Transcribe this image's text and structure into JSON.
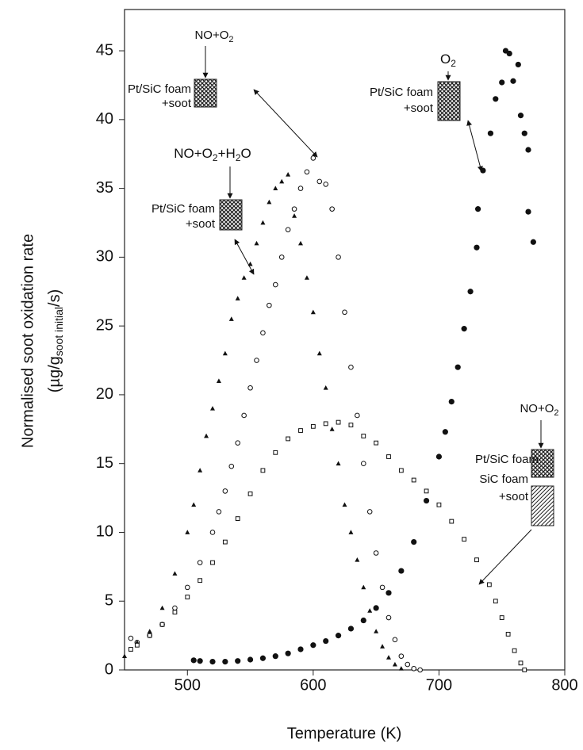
{
  "chart_data": {
    "type": "scatter",
    "x_label": "Temperature (K)",
    "y_label": "Normalised soot oxidation rate",
    "y_label_line2": {
      "before": "(µg/g",
      "sub": "soot initial",
      "after": "/s)"
    },
    "xlim": [
      450,
      800
    ],
    "xticks": [
      500,
      600,
      700,
      800
    ],
    "ylim": [
      0,
      48
    ],
    "yticks": [
      0,
      5,
      10,
      15,
      20,
      25,
      30,
      35,
      40,
      45
    ],
    "grid": false,
    "series": [
      {
        "marker": "filled-circle",
        "color": "#111111",
        "x": [
          505,
          510,
          520,
          530,
          540,
          550,
          560,
          570,
          580,
          590,
          600,
          610,
          620,
          630,
          640,
          650,
          660,
          670,
          680,
          690,
          700,
          705,
          710,
          715,
          720,
          725,
          730,
          731,
          735,
          741,
          745,
          750,
          753,
          756,
          759,
          763,
          765,
          768,
          771,
          771,
          775
        ],
        "values": [
          0.7,
          0.65,
          0.6,
          0.6,
          0.65,
          0.75,
          0.85,
          1.0,
          1.2,
          1.5,
          1.8,
          2.1,
          2.5,
          3.0,
          3.6,
          4.5,
          5.6,
          7.2,
          9.3,
          12.3,
          15.5,
          17.3,
          19.5,
          22.0,
          24.8,
          27.5,
          30.7,
          33.5,
          36.3,
          39.0,
          41.5,
          42.7,
          45.0,
          44.8,
          42.8,
          44.0,
          40.3,
          39.0,
          37.8,
          33.3,
          31.1
        ]
      },
      {
        "marker": "open-circle",
        "color": "#111111",
        "x": [
          455,
          460,
          470,
          480,
          490,
          500,
          510,
          520,
          525,
          530,
          535,
          540,
          545,
          550,
          555,
          560,
          565,
          570,
          575,
          580,
          585,
          590,
          595,
          600,
          605,
          610,
          615,
          620,
          625,
          630,
          635,
          640,
          645,
          650,
          655,
          660,
          665,
          670,
          675,
          680,
          685
        ],
        "values": [
          2.3,
          2.0,
          2.5,
          3.3,
          4.5,
          6.0,
          7.8,
          10.0,
          11.5,
          13.0,
          14.8,
          16.5,
          18.5,
          20.5,
          22.5,
          24.5,
          26.5,
          28.0,
          30.0,
          32.0,
          33.5,
          35.0,
          36.2,
          37.2,
          35.5,
          35.3,
          33.5,
          30.0,
          26.0,
          22.0,
          18.5,
          15.0,
          11.5,
          8.5,
          6.0,
          3.8,
          2.2,
          1.0,
          0.4,
          0.1,
          0.0
        ]
      },
      {
        "marker": "triangle",
        "color": "#111111",
        "x": [
          450,
          455,
          460,
          470,
          480,
          490,
          500,
          505,
          510,
          515,
          520,
          525,
          530,
          535,
          540,
          545,
          550,
          555,
          560,
          565,
          570,
          575,
          580,
          585,
          590,
          595,
          600,
          605,
          610,
          615,
          620,
          625,
          630,
          635,
          640,
          645,
          650,
          655,
          660,
          665,
          670
        ],
        "values": [
          1.0,
          1.5,
          2.0,
          2.8,
          4.5,
          7.0,
          10.0,
          12.0,
          14.5,
          17.0,
          19.0,
          21.0,
          23.0,
          25.5,
          27.0,
          28.5,
          29.5,
          31.0,
          32.5,
          34.0,
          35.0,
          35.5,
          36.0,
          33.0,
          31.0,
          28.5,
          26.0,
          23.0,
          20.5,
          17.5,
          15.0,
          12.0,
          10.0,
          8.0,
          6.0,
          4.3,
          2.8,
          1.7,
          0.9,
          0.4,
          0.1
        ]
      },
      {
        "marker": "square",
        "color": "#111111",
        "x": [
          455,
          460,
          470,
          480,
          490,
          500,
          510,
          520,
          530,
          540,
          550,
          560,
          570,
          580,
          590,
          600,
          610,
          620,
          630,
          640,
          650,
          660,
          670,
          680,
          690,
          700,
          710,
          720,
          730,
          740,
          745,
          750,
          755,
          760,
          765,
          768
        ],
        "values": [
          1.5,
          1.8,
          2.5,
          3.3,
          4.2,
          5.3,
          6.5,
          7.8,
          9.3,
          11.0,
          12.8,
          14.5,
          15.8,
          16.8,
          17.4,
          17.7,
          17.9,
          18.0,
          17.8,
          17.0,
          16.5,
          15.5,
          14.5,
          13.8,
          13.0,
          12.0,
          10.8,
          9.5,
          8.0,
          6.2,
          5.0,
          3.8,
          2.6,
          1.4,
          0.5,
          0.0
        ]
      }
    ],
    "annotations": [
      {
        "gas": "NO+O",
        "gas_sub": "2",
        "label1": "Pt/SiC foam",
        "label2": "+soot"
      },
      {
        "gas": "NO+O",
        "gas_sub": "2",
        "gas_rest": "+H",
        "gas_sub2": "2",
        "gas_end": "O",
        "label1": "Pt/SiC foam",
        "label2": "+soot"
      },
      {
        "gas": "O",
        "gas_sub": "2",
        "label1": "Pt/SiC foam",
        "label2": "+soot"
      },
      {
        "gas": "NO+O",
        "gas_sub": "2",
        "label1": "Pt/SiC foam",
        "label2": "SiC foam",
        "label3": "+soot"
      }
    ]
  }
}
